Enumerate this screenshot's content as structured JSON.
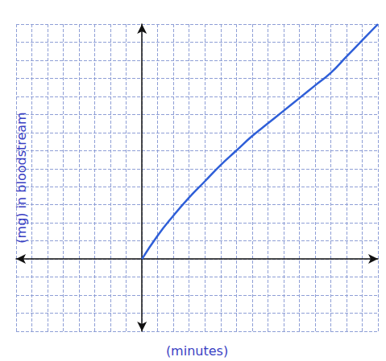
{
  "chart_data": {
    "type": "line",
    "x_label": "(minutes)",
    "y_label": "(mg) in bloodstream",
    "x": [
      0,
      1,
      2,
      3,
      4,
      5,
      6,
      7,
      8,
      9,
      10,
      11,
      12,
      13,
      14,
      15
    ],
    "values": [
      0,
      1.3,
      2.4,
      3.4,
      4.3,
      5.2,
      6.0,
      6.8,
      7.5,
      8.2,
      8.9,
      9.6,
      10.3,
      11.2,
      12.1,
      13
    ],
    "color": "#2f5fd8",
    "xlim": [
      -8,
      15
    ],
    "xticks": [
      -8,
      -7,
      -6,
      -5,
      -4,
      -3,
      -2,
      -1,
      0,
      1,
      2,
      3,
      4,
      5,
      6,
      7,
      8,
      9,
      10,
      11,
      12,
      13,
      14,
      15
    ],
    "ylim": [
      -4,
      13
    ],
    "yticks": [
      -4,
      -3,
      -2,
      -1,
      0,
      1,
      2,
      3,
      4,
      5,
      6,
      7,
      8,
      9,
      10,
      11,
      12,
      13
    ],
    "grid": true,
    "tick_labels": false
  }
}
